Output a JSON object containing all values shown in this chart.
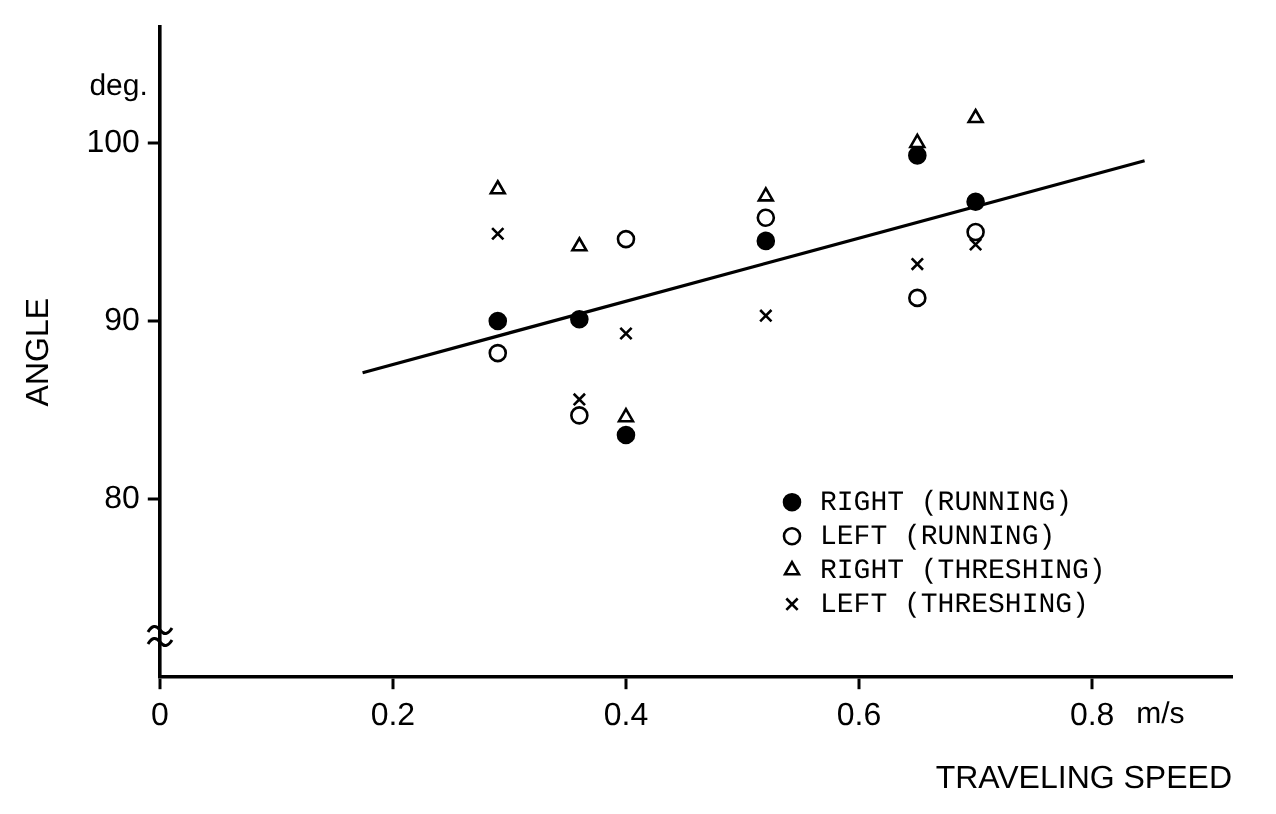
{
  "chart_data": {
    "type": "scatter",
    "xlabel": "TRAVELING SPEED",
    "ylabel": "ANGLE",
    "annotations": [
      "deg.",
      "m/s"
    ],
    "xlim": [
      0,
      0.92
    ],
    "xticks": [
      0,
      0.2,
      0.4,
      0.6,
      0.8
    ],
    "ylim": [
      70,
      106.5
    ],
    "yticks": [
      80,
      90,
      100
    ],
    "grid": false,
    "legend": "bottom right",
    "series": [
      {
        "name": "RIGHT (RUNNING)",
        "color": "#000000",
        "marker": "circle",
        "x": [
          0.29,
          0.36,
          0.4,
          0.52,
          0.65,
          0.7
        ],
        "values": [
          90.0,
          90.1,
          83.6,
          94.5,
          99.3,
          96.7
        ]
      },
      {
        "name": "LEFT (RUNNING)",
        "color": "#ffffff",
        "marker": "circle",
        "x": [
          0.29,
          0.36,
          0.4,
          0.52,
          0.65,
          0.7
        ],
        "values": [
          88.2,
          84.7,
          94.6,
          95.8,
          91.3,
          95.0
        ]
      },
      {
        "name": "RIGHT (THRESHING)",
        "color": "#ffffff",
        "marker": "triangle",
        "x": [
          0.29,
          0.36,
          0.4,
          0.52,
          0.65,
          0.7
        ],
        "values": [
          97.4,
          94.2,
          84.6,
          97.0,
          100.0,
          101.4
        ]
      },
      {
        "name": "LEFT (THRESHING)",
        "color": "#000000",
        "marker": "cross",
        "x": [
          0.29,
          0.36,
          0.4,
          0.52,
          0.65,
          0.7
        ],
        "values": [
          94.9,
          85.6,
          89.3,
          90.3,
          93.2,
          94.3
        ]
      },
      {
        "type": "line",
        "color": "#000000",
        "marker": "none",
        "line_style": "solid",
        "x": [
          0.174,
          0.845
        ],
        "values": [
          87.1,
          99.0
        ]
      }
    ]
  }
}
